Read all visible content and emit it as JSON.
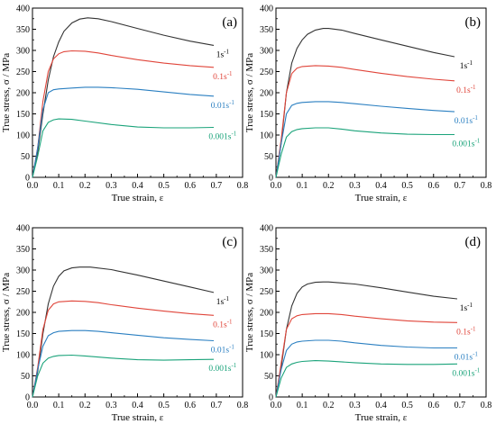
{
  "chart_data": [
    {
      "type": "line",
      "panel_label": "(a)",
      "xlabel": "True strain, ε",
      "ylabel": "True stress, σ / MPa",
      "xlim": [
        0.0,
        0.8
      ],
      "ylim": [
        0,
        400
      ],
      "xticks": [
        "0.0",
        "0.1",
        "0.2",
        "0.3",
        "0.4",
        "0.5",
        "0.6",
        "0.7",
        "0.8"
      ],
      "yticks": [
        "0",
        "50",
        "100",
        "150",
        "200",
        "250",
        "300",
        "350",
        "400"
      ],
      "grid": false,
      "series": [
        {
          "name": "1s⁻¹",
          "color": "#333333",
          "x": [
            0.0,
            0.02,
            0.04,
            0.06,
            0.08,
            0.1,
            0.12,
            0.15,
            0.18,
            0.21,
            0.25,
            0.3,
            0.4,
            0.5,
            0.6,
            0.69
          ],
          "y": [
            0,
            60,
            150,
            230,
            285,
            320,
            345,
            365,
            374,
            377,
            375,
            368,
            352,
            336,
            322,
            312
          ]
        },
        {
          "name": "0.1s⁻¹",
          "color": "#e0453a",
          "x": [
            0.0,
            0.02,
            0.04,
            0.06,
            0.08,
            0.1,
            0.12,
            0.15,
            0.2,
            0.25,
            0.3,
            0.4,
            0.5,
            0.6,
            0.69
          ],
          "y": [
            0,
            70,
            180,
            250,
            280,
            292,
            297,
            299,
            298,
            294,
            288,
            278,
            270,
            264,
            260
          ]
        },
        {
          "name": "0.01s⁻¹",
          "color": "#2a7fc1",
          "x": [
            0.0,
            0.02,
            0.04,
            0.06,
            0.08,
            0.1,
            0.15,
            0.2,
            0.25,
            0.3,
            0.4,
            0.5,
            0.6,
            0.69
          ],
          "y": [
            0,
            70,
            160,
            200,
            207,
            209,
            211,
            213,
            213,
            212,
            208,
            202,
            196,
            192
          ]
        },
        {
          "name": "0.001s⁻¹",
          "color": "#1aa37a",
          "x": [
            0.0,
            0.02,
            0.04,
            0.06,
            0.08,
            0.1,
            0.15,
            0.2,
            0.3,
            0.4,
            0.5,
            0.6,
            0.69
          ],
          "y": [
            0,
            50,
            110,
            130,
            136,
            138,
            137,
            133,
            125,
            119,
            117,
            117,
            118
          ]
        }
      ]
    },
    {
      "type": "line",
      "panel_label": "(b)",
      "xlabel": "True strain, ε",
      "ylabel": "True stress, σ / MPa",
      "xlim": [
        0.0,
        0.8
      ],
      "ylim": [
        0,
        400
      ],
      "xticks": [
        "0.0",
        "0.1",
        "0.2",
        "0.3",
        "0.4",
        "0.5",
        "0.6",
        "0.7",
        "0.8"
      ],
      "yticks": [
        "0",
        "50",
        "100",
        "150",
        "200",
        "250",
        "300",
        "350",
        "400"
      ],
      "grid": false,
      "series": [
        {
          "name": "1s⁻¹",
          "color": "#333333",
          "x": [
            0.0,
            0.02,
            0.04,
            0.06,
            0.08,
            0.1,
            0.12,
            0.15,
            0.18,
            0.2,
            0.25,
            0.3,
            0.4,
            0.5,
            0.6,
            0.68
          ],
          "y": [
            0,
            80,
            200,
            270,
            305,
            325,
            338,
            348,
            352,
            352,
            348,
            340,
            325,
            310,
            295,
            285
          ]
        },
        {
          "name": "0.1s⁻¹",
          "color": "#e0453a",
          "x": [
            0.0,
            0.02,
            0.04,
            0.06,
            0.08,
            0.1,
            0.15,
            0.2,
            0.25,
            0.3,
            0.4,
            0.5,
            0.6,
            0.68
          ],
          "y": [
            0,
            90,
            200,
            245,
            258,
            262,
            264,
            263,
            260,
            255,
            246,
            238,
            232,
            228
          ]
        },
        {
          "name": "0.01s⁻¹",
          "color": "#2a7fc1",
          "x": [
            0.0,
            0.02,
            0.04,
            0.06,
            0.08,
            0.1,
            0.15,
            0.2,
            0.25,
            0.3,
            0.4,
            0.5,
            0.6,
            0.68
          ],
          "y": [
            0,
            80,
            150,
            170,
            175,
            177,
            179,
            179,
            177,
            174,
            168,
            163,
            158,
            155
          ]
        },
        {
          "name": "0.001s⁻¹",
          "color": "#1aa37a",
          "x": [
            0.0,
            0.02,
            0.04,
            0.06,
            0.08,
            0.1,
            0.15,
            0.2,
            0.25,
            0.3,
            0.4,
            0.5,
            0.6,
            0.68
          ],
          "y": [
            0,
            55,
            95,
            108,
            113,
            115,
            117,
            117,
            114,
            110,
            105,
            102,
            101,
            101
          ]
        }
      ]
    },
    {
      "type": "line",
      "panel_label": "(c)",
      "xlabel": "True strain, ε",
      "ylabel": "True stress, σ / MPa",
      "xlim": [
        0.0,
        0.8
      ],
      "ylim": [
        0,
        400
      ],
      "xticks": [
        "0.0",
        "0.1",
        "0.2",
        "0.3",
        "0.4",
        "0.5",
        "0.6",
        "0.7",
        "0.8"
      ],
      "yticks": [
        "0",
        "50",
        "100",
        "150",
        "200",
        "250",
        "300",
        "350",
        "400"
      ],
      "grid": false,
      "series": [
        {
          "name": "1s⁻¹",
          "color": "#333333",
          "x": [
            0.0,
            0.02,
            0.04,
            0.06,
            0.08,
            0.1,
            0.12,
            0.15,
            0.18,
            0.22,
            0.3,
            0.4,
            0.5,
            0.6,
            0.69
          ],
          "y": [
            0,
            60,
            150,
            220,
            262,
            285,
            298,
            305,
            307,
            307,
            301,
            288,
            274,
            260,
            247
          ]
        },
        {
          "name": "0.1s⁻¹",
          "color": "#e0453a",
          "x": [
            0.0,
            0.02,
            0.04,
            0.06,
            0.08,
            0.1,
            0.15,
            0.2,
            0.25,
            0.3,
            0.4,
            0.5,
            0.6,
            0.69
          ],
          "y": [
            0,
            70,
            160,
            205,
            220,
            225,
            227,
            226,
            223,
            218,
            210,
            203,
            197,
            193
          ]
        },
        {
          "name": "0.01s⁻¹",
          "color": "#2a7fc1",
          "x": [
            0.0,
            0.02,
            0.04,
            0.06,
            0.08,
            0.1,
            0.15,
            0.2,
            0.25,
            0.3,
            0.4,
            0.5,
            0.6,
            0.69
          ],
          "y": [
            0,
            65,
            120,
            145,
            152,
            155,
            157,
            157,
            155,
            152,
            146,
            140,
            136,
            133
          ]
        },
        {
          "name": "0.001s⁻¹",
          "color": "#1aa37a",
          "x": [
            0.0,
            0.02,
            0.04,
            0.06,
            0.08,
            0.1,
            0.15,
            0.2,
            0.3,
            0.4,
            0.5,
            0.6,
            0.69
          ],
          "y": [
            0,
            50,
            80,
            92,
            96,
            98,
            99,
            97,
            92,
            88,
            87,
            88,
            89
          ]
        }
      ]
    },
    {
      "type": "line",
      "panel_label": "(d)",
      "xlabel": "True strain, ε",
      "ylabel": "True stress, σ / MPa",
      "xlim": [
        0.0,
        0.8
      ],
      "ylim": [
        0,
        400
      ],
      "xticks": [
        "0.0",
        "0.1",
        "0.2",
        "0.3",
        "0.4",
        "0.5",
        "0.6",
        "0.7",
        "0.8"
      ],
      "yticks": [
        "0",
        "50",
        "100",
        "150",
        "200",
        "250",
        "300",
        "350",
        "400"
      ],
      "grid": false,
      "series": [
        {
          "name": "1s⁻¹",
          "color": "#333333",
          "x": [
            0.0,
            0.02,
            0.04,
            0.06,
            0.08,
            0.1,
            0.12,
            0.15,
            0.18,
            0.2,
            0.3,
            0.4,
            0.5,
            0.6,
            0.69
          ],
          "y": [
            0,
            70,
            160,
            215,
            245,
            260,
            267,
            271,
            272,
            272,
            267,
            258,
            248,
            238,
            232
          ]
        },
        {
          "name": "0.1s⁻¹",
          "color": "#e0453a",
          "x": [
            0.0,
            0.02,
            0.04,
            0.06,
            0.08,
            0.1,
            0.15,
            0.2,
            0.25,
            0.3,
            0.4,
            0.5,
            0.6,
            0.69
          ],
          "y": [
            0,
            80,
            160,
            185,
            192,
            195,
            197,
            197,
            195,
            191,
            185,
            180,
            177,
            176
          ]
        },
        {
          "name": "0.01s⁻¹",
          "color": "#2a7fc1",
          "x": [
            0.0,
            0.02,
            0.04,
            0.06,
            0.08,
            0.1,
            0.15,
            0.2,
            0.25,
            0.3,
            0.4,
            0.5,
            0.6,
            0.69
          ],
          "y": [
            0,
            65,
            110,
            125,
            130,
            132,
            134,
            134,
            132,
            128,
            122,
            118,
            116,
            116
          ]
        },
        {
          "name": "0.001s⁻¹",
          "color": "#1aa37a",
          "x": [
            0.0,
            0.02,
            0.04,
            0.06,
            0.08,
            0.1,
            0.15,
            0.2,
            0.3,
            0.4,
            0.5,
            0.6,
            0.69
          ],
          "y": [
            0,
            45,
            70,
            78,
            82,
            84,
            86,
            85,
            81,
            78,
            77,
            77,
            78
          ]
        }
      ]
    }
  ]
}
